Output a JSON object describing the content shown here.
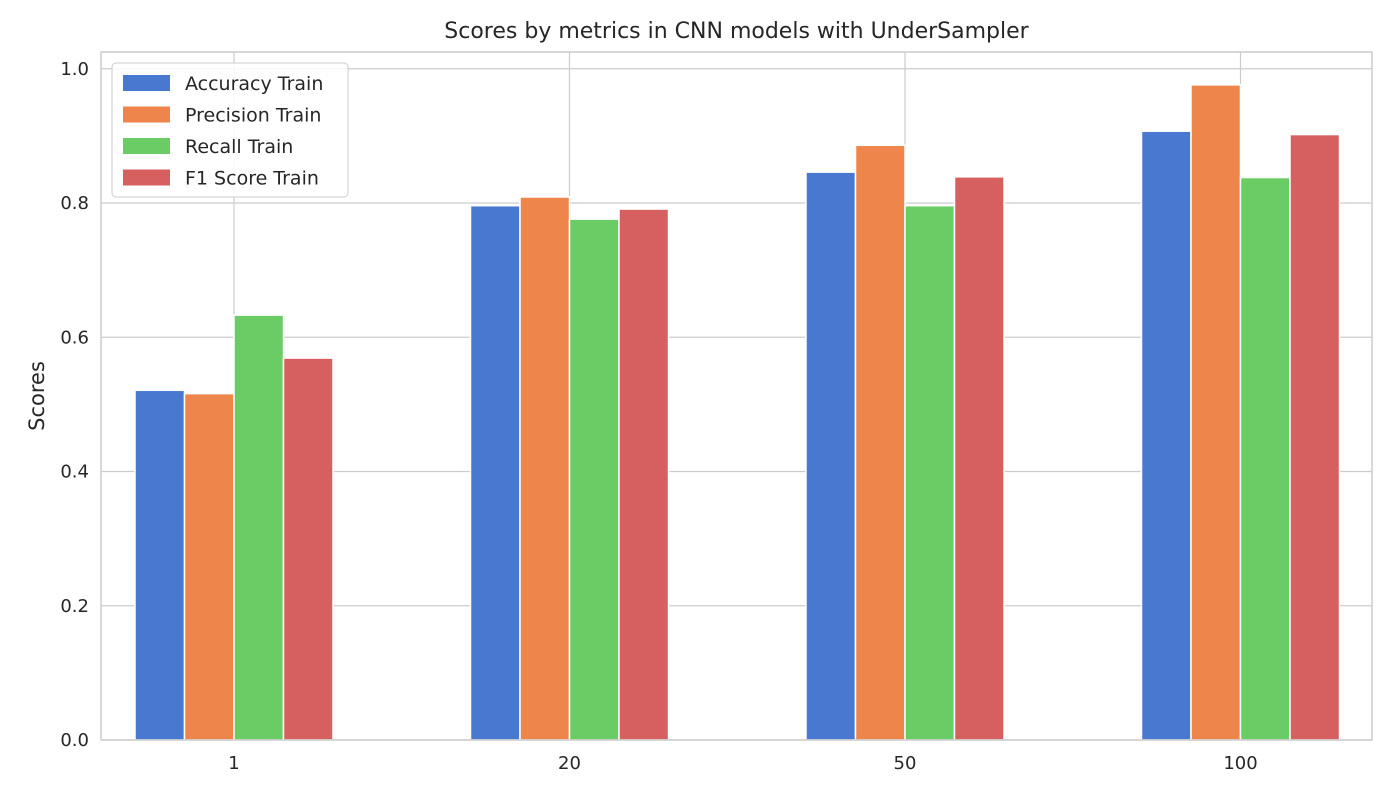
{
  "chart_data": {
    "type": "bar",
    "title": "Scores by metrics in CNN models with UnderSampler",
    "xlabel": "",
    "ylabel": "Scores",
    "categories": [
      "1",
      "20",
      "50",
      "100"
    ],
    "ylim": [
      0,
      1.0
    ],
    "yticks": [
      "0.0",
      "0.2",
      "0.4",
      "0.6",
      "0.8",
      "1.0"
    ],
    "grid": true,
    "legend_position": "top-left",
    "series": [
      {
        "name": "Accuracy Train",
        "color": "#4878d0",
        "values": [
          0.521,
          0.796,
          0.846,
          0.907
        ]
      },
      {
        "name": "Precision Train",
        "color": "#ee854a",
        "values": [
          0.516,
          0.809,
          0.886,
          0.976
        ]
      },
      {
        "name": "Recall Train",
        "color": "#6acc64",
        "values": [
          0.633,
          0.776,
          0.796,
          0.838
        ]
      },
      {
        "name": "F1 Score Train",
        "color": "#d65f5f",
        "values": [
          0.569,
          0.791,
          0.839,
          0.902
        ]
      }
    ]
  }
}
